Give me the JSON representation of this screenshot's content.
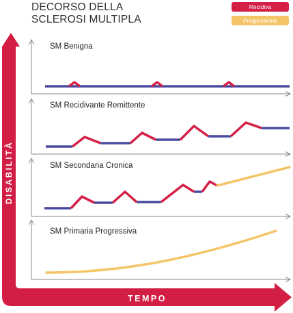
{
  "title": {
    "line1": "DECORSO DELLA",
    "line2": "SCLEROSI MULTIPLA"
  },
  "legend": {
    "relapse": {
      "label": "Recidiva",
      "color": "#d41f46"
    },
    "progression": {
      "label": "Progressione",
      "color": "#f4c566"
    }
  },
  "axes": {
    "y_label": "DISABILITÀ",
    "x_label": "TEMPO",
    "color": "#d21e44"
  },
  "baseline_color": "#4a4aa0",
  "panels": [
    {
      "label": "SM Benigna"
    },
    {
      "label": "SM Recidivante Remittente"
    },
    {
      "label": "SM Secondaria Cronica"
    },
    {
      "label": "SM Primaria Progressiva"
    }
  ]
}
